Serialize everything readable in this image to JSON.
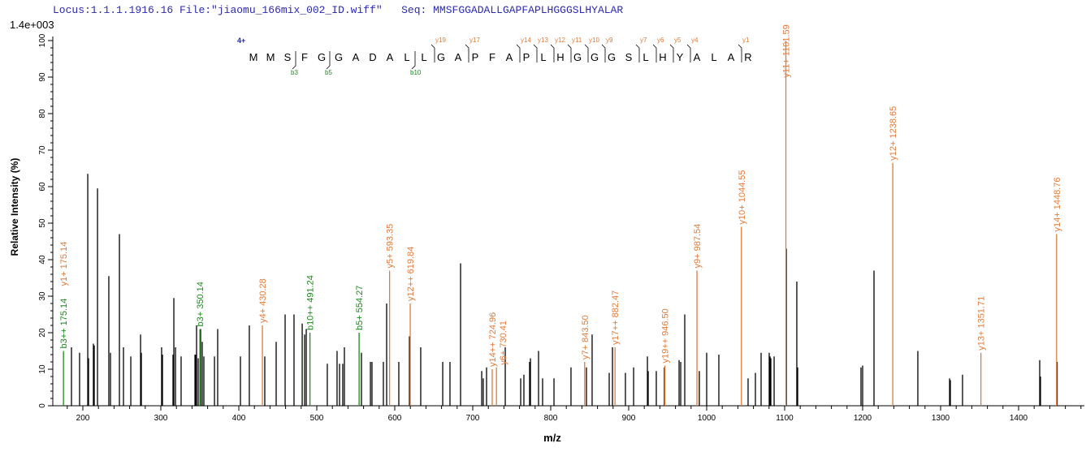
{
  "header": {
    "locus": "Locus:1.1.1.1916.16",
    "file": "File:\"jiaomu_166mix_002_ID.wiff\"",
    "seq_label": "Seq:",
    "seq": "MMSFGGADALLGAPFAPLHGGGSLHYALAR"
  },
  "chart_data": {
    "type": "bar",
    "title": "",
    "xlabel": "m/z",
    "ylabel": "Relative  Intensity (%)",
    "y_scale_label": "1.4e+003",
    "xlim": [
      160,
      1485
    ],
    "ylim": [
      0,
      100
    ],
    "x_ticks": [
      200,
      300,
      400,
      500,
      600,
      700,
      800,
      900,
      1000,
      1100,
      1200,
      1300,
      1400
    ],
    "y_ticks": [
      0,
      10,
      20,
      30,
      40,
      50,
      60,
      70,
      80,
      90,
      100
    ],
    "grid": false,
    "colors": {
      "y": "#e07b39",
      "b": "#1a8a1a",
      "unassigned": "#000000",
      "charge": "#2020c0"
    },
    "precursor_charge": "4+",
    "sequence": [
      "M",
      "M",
      "S",
      "F",
      "G",
      "G",
      "A",
      "D",
      "A",
      "L",
      "L",
      "G",
      "A",
      "P",
      "F",
      "A",
      "P",
      "L",
      "H",
      "G",
      "G",
      "G",
      "S",
      "L",
      "H",
      "Y",
      "A",
      "L",
      "A",
      "R"
    ],
    "y_fragments": [
      {
        "label": "y19",
        "start": 11
      },
      {
        "label": "y17",
        "start": 13
      },
      {
        "label": "y14",
        "start": 16
      },
      {
        "label": "y13",
        "start": 17
      },
      {
        "label": "y12",
        "start": 18
      },
      {
        "label": "y11",
        "start": 19
      },
      {
        "label": "y10",
        "start": 20
      },
      {
        "label": "y9",
        "start": 21
      },
      {
        "label": "y7",
        "start": 23
      },
      {
        "label": "y6",
        "start": 24
      },
      {
        "label": "y5",
        "start": 25
      },
      {
        "label": "y4",
        "start": 26
      },
      {
        "label": "y1",
        "start": 29
      }
    ],
    "b_fragments": [
      {
        "label": "b3",
        "end": 2
      },
      {
        "label": "b5",
        "end": 4
      },
      {
        "label": "b10",
        "end": 9
      }
    ],
    "annotated_peaks": [
      {
        "label": "b3++ 175.14",
        "mz": 175.14,
        "intensity": 15,
        "type": "b"
      },
      {
        "label": "y1+ 175.14",
        "mz": 175.14,
        "intensity": 15,
        "type": "y",
        "stack": true
      },
      {
        "label": "b3+ 350.14",
        "mz": 350.14,
        "intensity": 21,
        "type": "b"
      },
      {
        "label": "y4+ 430.28",
        "mz": 430.28,
        "intensity": 22,
        "type": "y"
      },
      {
        "label": "b10++ 491.24",
        "mz": 491.24,
        "intensity": 20,
        "type": "b"
      },
      {
        "label": "b5+ 554.27",
        "mz": 554.27,
        "intensity": 20,
        "type": "b"
      },
      {
        "label": "y5+ 593.35",
        "mz": 593.35,
        "intensity": 37,
        "type": "y"
      },
      {
        "label": "y12++ 619.84",
        "mz": 619.84,
        "intensity": 28,
        "type": "y"
      },
      {
        "label": "y14++ 724.96",
        "mz": 724.96,
        "intensity": 10,
        "type": "y"
      },
      {
        "label": "y6+ 730.41",
        "mz": 730.41,
        "intensity": 10.5,
        "type": "y"
      },
      {
        "label": "y7+ 843.50",
        "mz": 843.5,
        "intensity": 12,
        "type": "y"
      },
      {
        "label": "y17++ 882.47",
        "mz": 882.47,
        "intensity": 16,
        "type": "y"
      },
      {
        "label": "y19++ 946.50",
        "mz": 946.5,
        "intensity": 11,
        "type": "y"
      },
      {
        "label": "y9+ 987.54",
        "mz": 987.54,
        "intensity": 37,
        "type": "y"
      },
      {
        "label": "y10+ 1044.55",
        "mz": 1044.55,
        "intensity": 49,
        "type": "y"
      },
      {
        "label": "y11+ 1101.59",
        "mz": 1101.59,
        "intensity": 100,
        "type": "y"
      },
      {
        "label": "y12+ 1238.65",
        "mz": 1238.65,
        "intensity": 66.5,
        "type": "y"
      },
      {
        "label": "y13+ 1351.71",
        "mz": 1351.71,
        "intensity": 14.5,
        "type": "y"
      },
      {
        "label": "y14+ 1448.76",
        "mz": 1448.76,
        "intensity": 47,
        "type": "y"
      }
    ],
    "peaks": [
      [
        185.4,
        16
      ],
      [
        195.8,
        14.5
      ],
      [
        206.3,
        63.5
      ],
      [
        207.3,
        13
      ],
      [
        213.5,
        17
      ],
      [
        214.6,
        16.5
      ],
      [
        218.8,
        59.5
      ],
      [
        233.3,
        35.5
      ],
      [
        235.4,
        14.5
      ],
      [
        246.9,
        47
      ],
      [
        252.1,
        16
      ],
      [
        261.5,
        13.5
      ],
      [
        274,
        19.5
      ],
      [
        275,
        14.5
      ],
      [
        301,
        16
      ],
      [
        302.1,
        14
      ],
      [
        315.6,
        14
      ],
      [
        316.7,
        29.5
      ],
      [
        318.8,
        16
      ],
      [
        326,
        13.5
      ],
      [
        343.8,
        14
      ],
      [
        344.8,
        14
      ],
      [
        345.8,
        22
      ],
      [
        347.9,
        13
      ],
      [
        351,
        21
      ],
      [
        353.1,
        17.5
      ],
      [
        355.2,
        13.5
      ],
      [
        368.8,
        13.5
      ],
      [
        372.9,
        21
      ],
      [
        402.1,
        13.5
      ],
      [
        413.5,
        22
      ],
      [
        433.3,
        13.5
      ],
      [
        447.9,
        17.5
      ],
      [
        459.4,
        25
      ],
      [
        470.8,
        25
      ],
      [
        481.3,
        22.5
      ],
      [
        484.4,
        19.5
      ],
      [
        486.5,
        21
      ],
      [
        513.5,
        11.5
      ],
      [
        526,
        15
      ],
      [
        529.2,
        11.5
      ],
      [
        533.3,
        11.5
      ],
      [
        535.4,
        16
      ],
      [
        557.3,
        14.5
      ],
      [
        568.8,
        12
      ],
      [
        570.8,
        12
      ],
      [
        585.4,
        12
      ],
      [
        589.6,
        28
      ],
      [
        605.2,
        12
      ],
      [
        618.8,
        19
      ],
      [
        633.3,
        16
      ],
      [
        661.5,
        12
      ],
      [
        670.8,
        12
      ],
      [
        684.4,
        39
      ],
      [
        711.5,
        9.5
      ],
      [
        713.5,
        7.5
      ],
      [
        717.7,
        10.5
      ],
      [
        741.7,
        16
      ],
      [
        761.5,
        7.5
      ],
      [
        765.6,
        8.5
      ],
      [
        772.9,
        12
      ],
      [
        774,
        13
      ],
      [
        784.4,
        15
      ],
      [
        789.6,
        7.5
      ],
      [
        804.2,
        7.5
      ],
      [
        826,
        10.5
      ],
      [
        845.8,
        10.5
      ],
      [
        853.1,
        19.5
      ],
      [
        875,
        9
      ],
      [
        879.2,
        16
      ],
      [
        895.8,
        9
      ],
      [
        906.3,
        10.5
      ],
      [
        924,
        13.5
      ],
      [
        925,
        9.5
      ],
      [
        935.4,
        9.5
      ],
      [
        945.8,
        10.5
      ],
      [
        964.6,
        12.5
      ],
      [
        966.7,
        12
      ],
      [
        971.9,
        25
      ],
      [
        990.6,
        9.5
      ],
      [
        1000,
        14.5
      ],
      [
        1015.6,
        14
      ],
      [
        1053.1,
        7.5
      ],
      [
        1062.5,
        9
      ],
      [
        1069.8,
        14.5
      ],
      [
        1080.2,
        14.5
      ],
      [
        1081.3,
        13.5
      ],
      [
        1082.3,
        13
      ],
      [
        1086.5,
        13.5
      ],
      [
        1102.2,
        43
      ],
      [
        1115.6,
        34
      ],
      [
        1116.7,
        10.5
      ],
      [
        1197.9,
        10.5
      ],
      [
        1200,
        11
      ],
      [
        1214.6,
        37
      ],
      [
        1270.8,
        15
      ],
      [
        1311.5,
        7.5
      ],
      [
        1312.5,
        7
      ],
      [
        1328.1,
        8.5
      ],
      [
        1427.1,
        12.5
      ],
      [
        1428.1,
        8
      ],
      [
        1449.5,
        12
      ]
    ]
  }
}
